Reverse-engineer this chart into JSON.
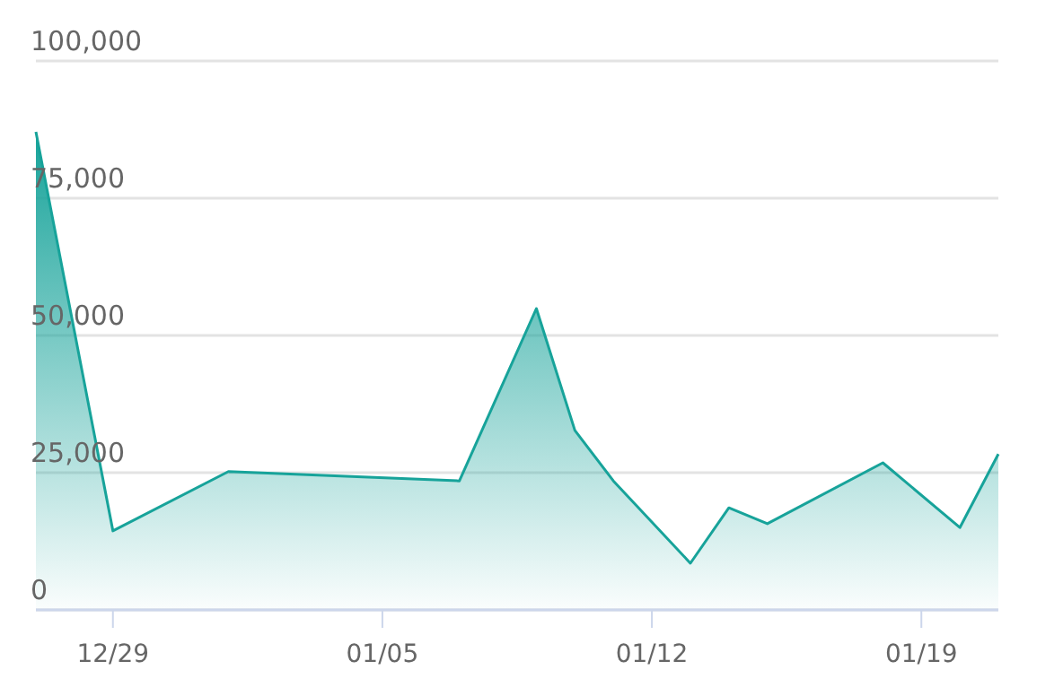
{
  "chart_data": {
    "type": "area",
    "categories": [
      null,
      null,
      "12/29",
      null,
      null,
      null,
      null,
      null,
      null,
      "01/05",
      null,
      null,
      null,
      null,
      null,
      null,
      "01/12",
      null,
      null,
      null,
      null,
      null,
      null,
      "01/19",
      null,
      null
    ],
    "series": [
      {
        "color": "#17a39a",
        "values": [
          87100,
          null,
          14400,
          null,
          null,
          25200,
          null,
          null,
          null,
          null,
          null,
          23500,
          null,
          54900,
          32700,
          23500,
          null,
          8500,
          18600,
          15700,
          null,
          null,
          26800,
          null,
          15000,
          28400
        ]
      }
    ],
    "ylim": [
      0,
      100000
    ],
    "yticks": [
      {
        "value": 0,
        "label": "0"
      },
      {
        "value": 25000,
        "label": "25,000"
      },
      {
        "value": 50000,
        "label": "50,000"
      },
      {
        "value": 75000,
        "label": "75,000"
      },
      {
        "value": 100000,
        "label": "100,000"
      }
    ],
    "grid": "y"
  }
}
